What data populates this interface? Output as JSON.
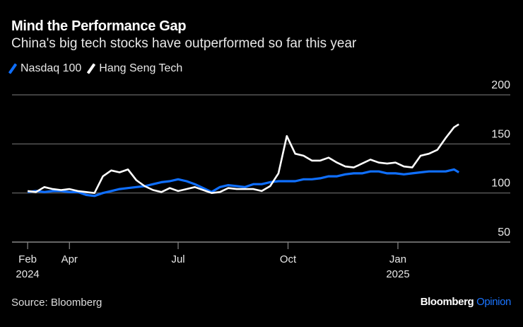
{
  "chart_data": {
    "type": "line",
    "title": "Mind the Performance Gap",
    "subtitle": "China's big tech stocks have outperformed so far this year",
    "xlabel": "",
    "ylabel": "",
    "ylim": [
      50,
      200
    ],
    "yticks": [
      50,
      100,
      150,
      200
    ],
    "xticks": [
      {
        "label": "Feb",
        "year": "2024",
        "date": "2024-02-26"
      },
      {
        "label": "Apr",
        "year": "",
        "date": "2024-04-01"
      },
      {
        "label": "Jul",
        "year": "",
        "date": "2024-07-01"
      },
      {
        "label": "Oct",
        "year": "",
        "date": "2024-10-01"
      },
      {
        "label": "Jan",
        "year": "2025",
        "date": "2025-01-01"
      }
    ],
    "grid": true,
    "legend_position": "top-left",
    "x": [
      "2024-02-26",
      "2024-03-04",
      "2024-03-11",
      "2024-03-18",
      "2024-03-25",
      "2024-04-01",
      "2024-04-08",
      "2024-04-15",
      "2024-04-22",
      "2024-04-29",
      "2024-05-06",
      "2024-05-13",
      "2024-05-20",
      "2024-05-27",
      "2024-06-03",
      "2024-06-10",
      "2024-06-17",
      "2024-06-24",
      "2024-07-01",
      "2024-07-08",
      "2024-07-15",
      "2024-07-22",
      "2024-07-29",
      "2024-08-05",
      "2024-08-12",
      "2024-08-19",
      "2024-08-26",
      "2024-09-02",
      "2024-09-09",
      "2024-09-16",
      "2024-09-23",
      "2024-09-30",
      "2024-10-07",
      "2024-10-14",
      "2024-10-21",
      "2024-10-28",
      "2024-11-04",
      "2024-11-11",
      "2024-11-18",
      "2024-11-25",
      "2024-12-02",
      "2024-12-09",
      "2024-12-16",
      "2024-12-23",
      "2024-12-30",
      "2025-01-06",
      "2025-01-13",
      "2025-01-20",
      "2025-01-27",
      "2025-02-03",
      "2025-02-10",
      "2025-02-17",
      "2025-02-21"
    ],
    "series": [
      {
        "name": "Nasdaq 100",
        "color": "#0f6fff",
        "values": [
          101,
          102,
          101,
          102,
          102,
          101,
          101,
          98,
          97,
          100,
          102,
          104,
          105,
          106,
          107,
          109,
          111,
          112,
          114,
          112,
          109,
          105,
          101,
          106,
          108,
          107,
          106,
          109,
          109,
          111,
          112,
          112,
          112,
          114,
          114,
          115,
          117,
          117,
          119,
          120,
          120,
          122,
          122,
          120,
          120,
          119,
          120,
          121,
          122,
          122,
          122,
          124,
          121
        ]
      },
      {
        "name": "Hang Seng Tech",
        "color": "#ffffff",
        "values": [
          102,
          101,
          106,
          104,
          103,
          104,
          102,
          101,
          100,
          117,
          123,
          121,
          124,
          113,
          107,
          103,
          101,
          105,
          102,
          104,
          106,
          103,
          100,
          101,
          105,
          104,
          104,
          104,
          102,
          107,
          120,
          158,
          140,
          138,
          133,
          133,
          136,
          131,
          127,
          126,
          130,
          134,
          131,
          130,
          131,
          127,
          126,
          138,
          140,
          144,
          156,
          167,
          170
        ]
      }
    ]
  },
  "footer": {
    "source": "Source: Bloomberg",
    "brand": "Bloomberg",
    "brand_accent": "Opinion"
  },
  "colors": {
    "background": "#000000",
    "accent": "#1a74ff",
    "grid": "#555555"
  }
}
